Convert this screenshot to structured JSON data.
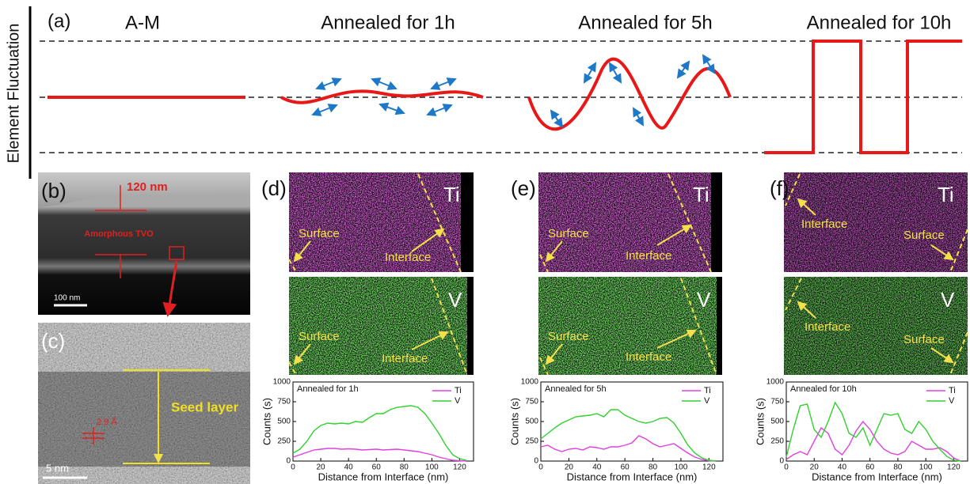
{
  "figure": {
    "y_axis_label": "Element Fluctuation",
    "panel_a": {
      "label": "(a)",
      "titles": [
        "A-M",
        "Annealed for 1h",
        "Annealed for 5h",
        "Annealed for 10h"
      ]
    },
    "panel_b": {
      "label": "(b)",
      "thickness": "120 nm",
      "layer": "Amorphous TVO",
      "scale_bar": "100 nm"
    },
    "panel_c": {
      "label": "(c)",
      "layer": "Seed layer",
      "spacing": "2.9 Å",
      "scale_bar": "5 nm"
    },
    "maps": [
      {
        "label": "(d)",
        "ti": {
          "element": "Ti",
          "surface": "Surface",
          "interface": "Interface"
        },
        "v": {
          "element": "V",
          "surface": "Surface",
          "interface": "Interface"
        }
      },
      {
        "label": "(e)",
        "ti": {
          "element": "Ti",
          "surface": "Surface",
          "interface": "Interface"
        },
        "v": {
          "element": "V",
          "surface": "Surface",
          "interface": "Interface"
        }
      },
      {
        "label": "(f)",
        "ti": {
          "element": "Ti",
          "surface": "Surface",
          "interface": "Interface"
        },
        "v": {
          "element": "V",
          "surface": "Surface",
          "interface": "Interface"
        }
      }
    ]
  },
  "chart_data": [
    {
      "type": "line",
      "title": "Annealed for 1h",
      "x_label": "Distance from Interface (nm)",
      "y_label": "Counts (s)",
      "x": [
        0,
        5,
        10,
        15,
        20,
        25,
        30,
        35,
        40,
        45,
        50,
        55,
        60,
        65,
        70,
        75,
        80,
        85,
        90,
        95,
        100,
        105,
        110,
        115,
        120,
        125
      ],
      "series": [
        {
          "name": "Ti",
          "color": "#e23ee2",
          "values": [
            50,
            80,
            110,
            140,
            150,
            160,
            160,
            150,
            155,
            150,
            140,
            145,
            150,
            140,
            145,
            150,
            140,
            130,
            120,
            100,
            80,
            50,
            30,
            10,
            5,
            0
          ]
        },
        {
          "name": "V",
          "color": "#2ed12e",
          "values": [
            100,
            150,
            250,
            380,
            450,
            480,
            470,
            480,
            470,
            500,
            490,
            550,
            600,
            600,
            650,
            680,
            690,
            700,
            680,
            600,
            480,
            350,
            200,
            80,
            30,
            10
          ]
        }
      ],
      "xlim": [
        0,
        130
      ],
      "ylim": [
        0,
        1000
      ],
      "xticks": [
        0,
        20,
        40,
        60,
        80,
        100,
        120
      ],
      "yticks": [
        0,
        250,
        500,
        750,
        1000
      ]
    },
    {
      "type": "line",
      "title": "Annealed for 5h",
      "x_label": "Distance from Interface (nm)",
      "y_label": "Counts (s)",
      "x": [
        0,
        5,
        10,
        15,
        20,
        25,
        30,
        35,
        40,
        45,
        50,
        55,
        60,
        65,
        70,
        75,
        80,
        85,
        90,
        95,
        100,
        105,
        110,
        115,
        120,
        125
      ],
      "series": [
        {
          "name": "Ti",
          "color": "#e23ee2",
          "values": [
            180,
            200,
            150,
            120,
            150,
            160,
            140,
            180,
            170,
            150,
            180,
            180,
            200,
            230,
            320,
            280,
            220,
            180,
            200,
            220,
            160,
            100,
            50,
            20,
            5,
            0
          ]
        },
        {
          "name": "V",
          "color": "#2ed12e",
          "values": [
            280,
            350,
            420,
            480,
            520,
            560,
            570,
            580,
            600,
            560,
            650,
            650,
            580,
            540,
            500,
            480,
            500,
            540,
            550,
            480,
            350,
            200,
            100,
            40,
            10,
            0
          ]
        }
      ],
      "xlim": [
        0,
        130
      ],
      "ylim": [
        0,
        1000
      ],
      "xticks": [
        0,
        20,
        40,
        60,
        80,
        100,
        120
      ],
      "yticks": [
        0,
        250,
        500,
        750,
        1000
      ]
    },
    {
      "type": "line",
      "title": "Annealed for 10h",
      "x_label": "Distance from Interface (nm)",
      "y_label": "Counts (s)",
      "x": [
        0,
        5,
        10,
        15,
        20,
        25,
        30,
        35,
        40,
        45,
        50,
        55,
        60,
        65,
        70,
        75,
        80,
        85,
        90,
        95,
        100,
        105,
        110,
        115,
        120,
        125
      ],
      "series": [
        {
          "name": "Ti",
          "color": "#e23ee2",
          "values": [
            20,
            80,
            120,
            80,
            250,
            420,
            350,
            150,
            80,
            200,
            380,
            500,
            400,
            250,
            150,
            100,
            80,
            120,
            250,
            200,
            150,
            150,
            170,
            120,
            40,
            0
          ]
        },
        {
          "name": "V",
          "color": "#2ed12e",
          "values": [
            50,
            400,
            700,
            720,
            400,
            300,
            500,
            740,
            600,
            350,
            300,
            420,
            200,
            400,
            600,
            580,
            600,
            400,
            350,
            500,
            400,
            250,
            150,
            60,
            10,
            0
          ]
        }
      ],
      "xlim": [
        0,
        130
      ],
      "ylim": [
        0,
        1000
      ],
      "xticks": [
        0,
        20,
        40,
        60,
        80,
        100,
        120
      ],
      "yticks": [
        0,
        250,
        500,
        750,
        1000
      ]
    }
  ]
}
